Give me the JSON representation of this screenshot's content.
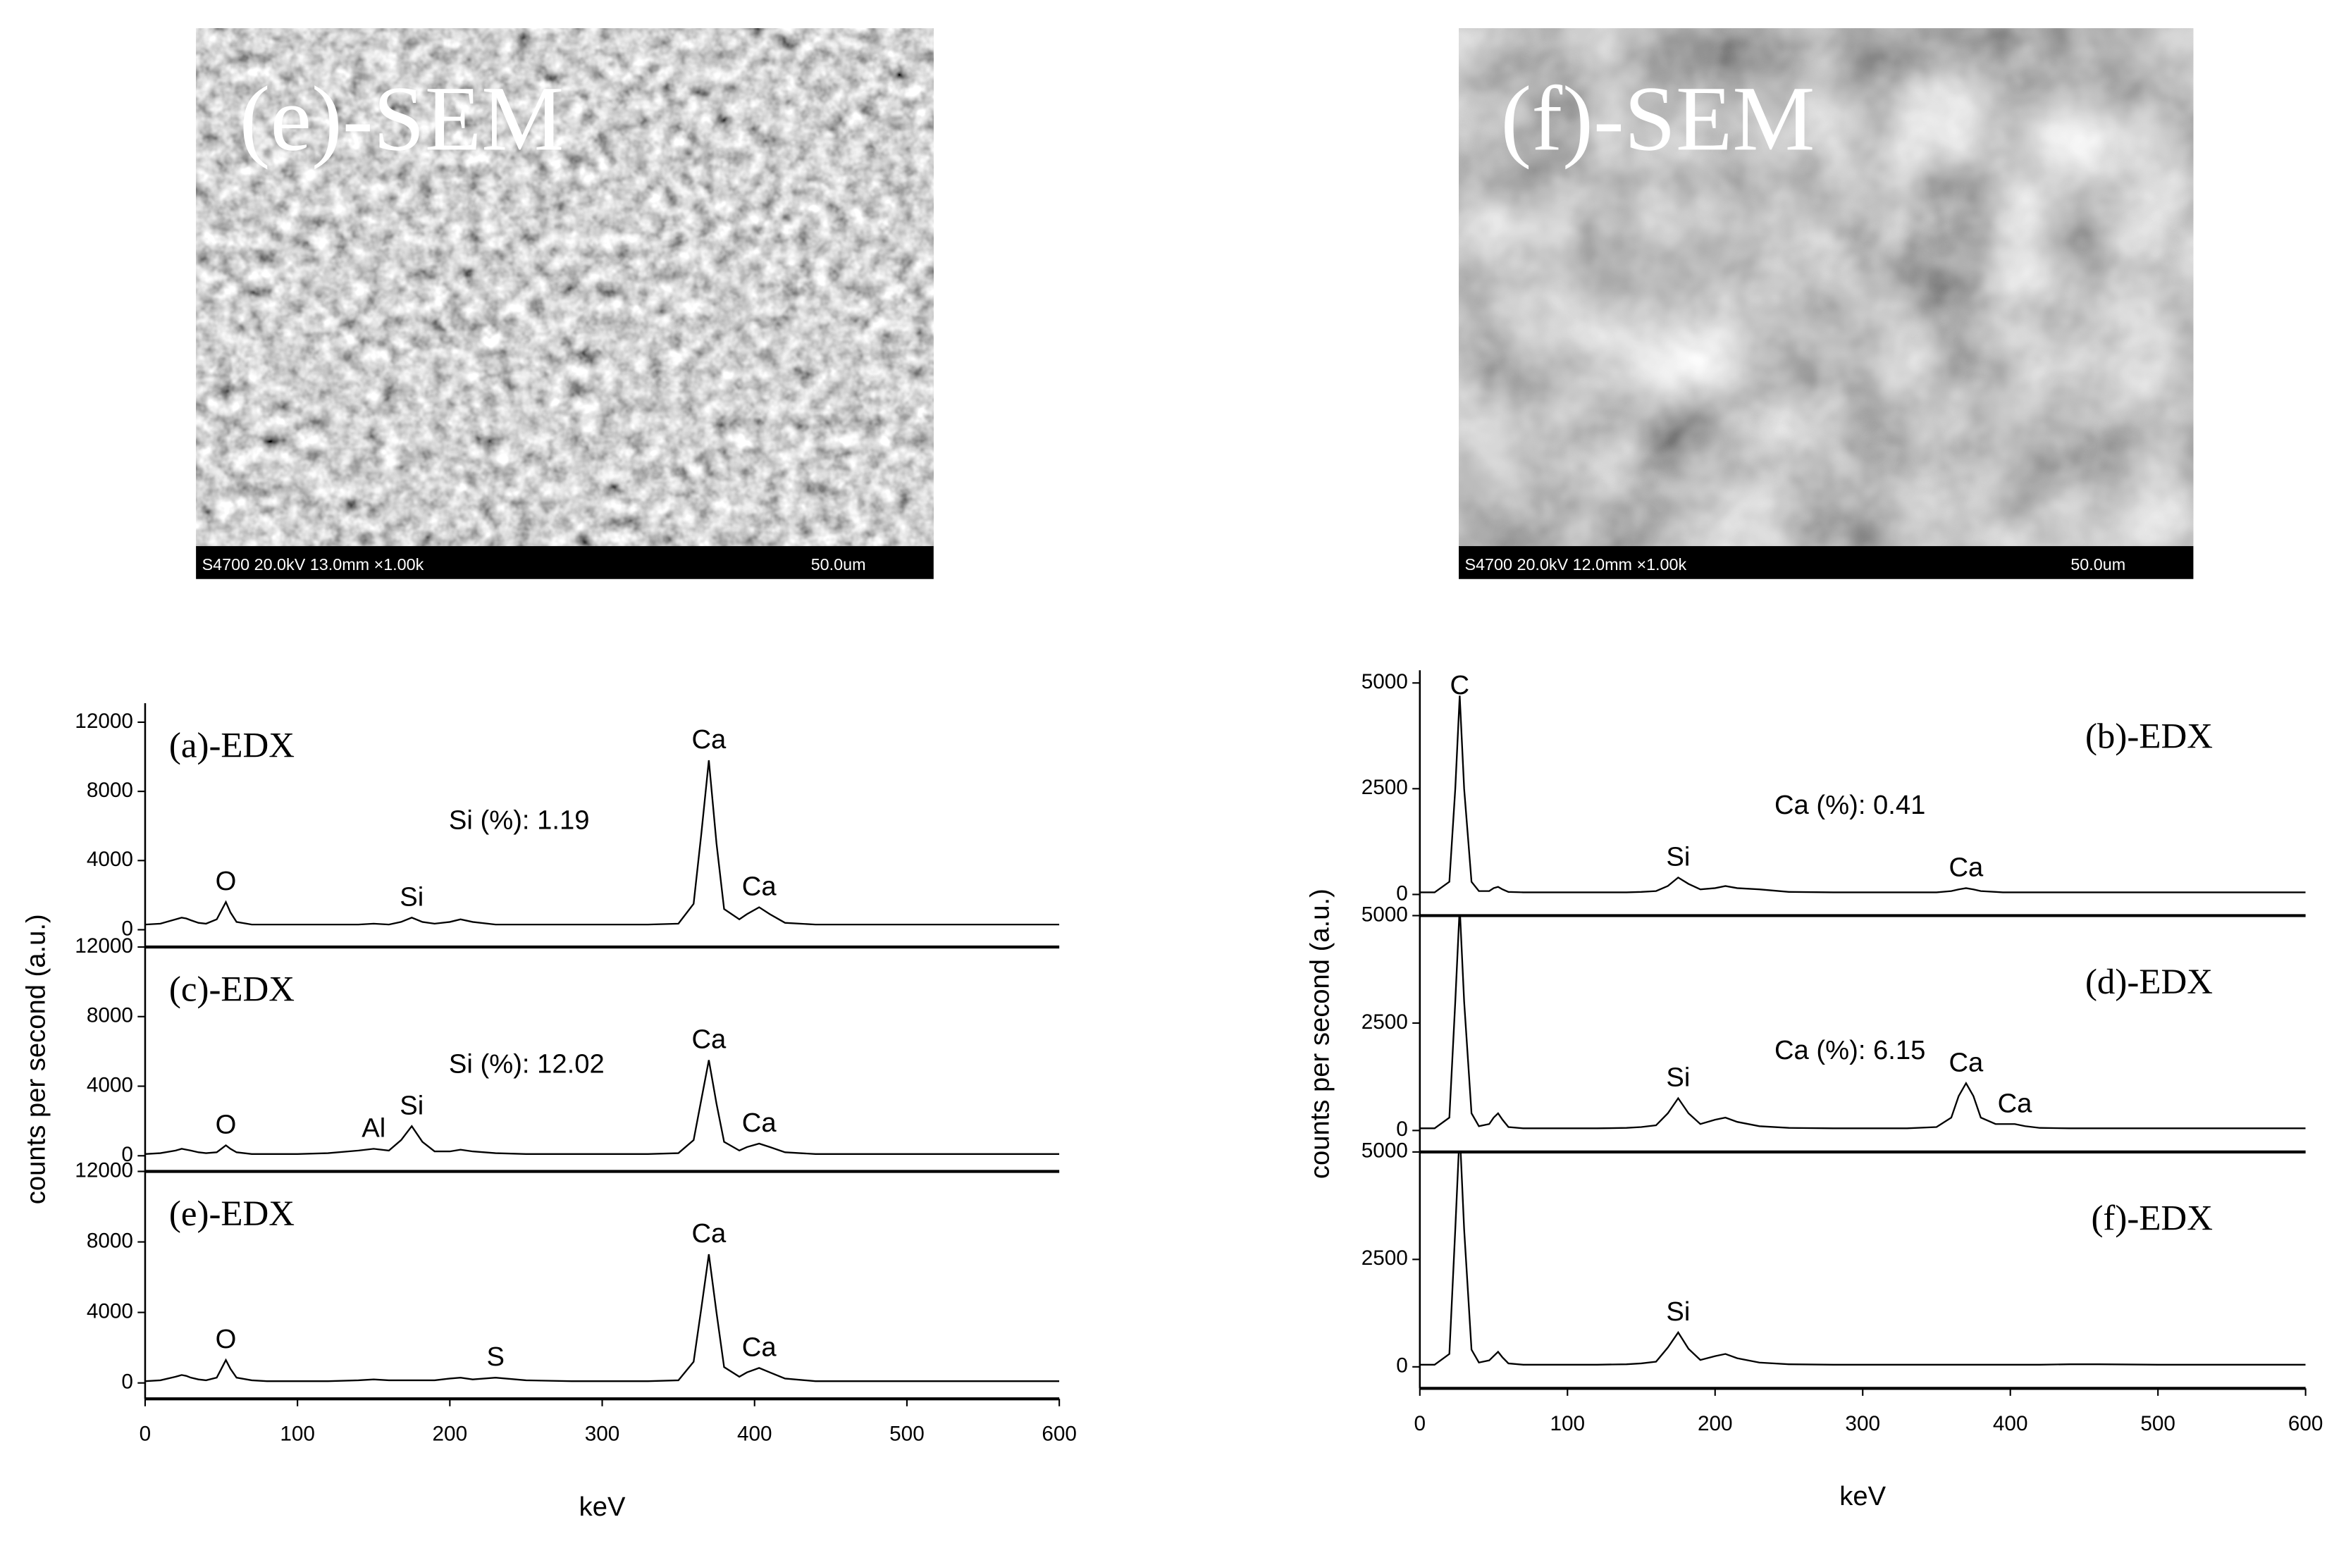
{
  "images": [
    {
      "label": "(e)-SEM",
      "info": "S4700 20.0kV 13.0mm ×1.00k",
      "scale": "50.0um"
    },
    {
      "label": "(f)-SEM",
      "info": "S4700 20.0kV 12.0mm ×1.00k",
      "scale": "50.0um"
    }
  ],
  "chart_data": [
    {
      "type": "line",
      "title": "(a)-EDX",
      "note": "Si (%): 1.19",
      "color": "#000000",
      "x": [
        0,
        10,
        20,
        24,
        27,
        30,
        35,
        40,
        47,
        50,
        53,
        56,
        60,
        70,
        80,
        100,
        120,
        140,
        150,
        160,
        168,
        175,
        182,
        190,
        200,
        207,
        215,
        230,
        250,
        280,
        300,
        330,
        350,
        360,
        365,
        370,
        375,
        380,
        390,
        395,
        403,
        410,
        420,
        440,
        460,
        500,
        550,
        600
      ],
      "values": [
        300,
        350,
        600,
        700,
        650,
        550,
        400,
        350,
        600,
        1100,
        1600,
        1000,
        450,
        300,
        300,
        300,
        300,
        300,
        350,
        300,
        450,
        700,
        450,
        350,
        450,
        600,
        450,
        300,
        300,
        300,
        300,
        300,
        350,
        1500,
        5500,
        9800,
        5000,
        1200,
        600,
        900,
        1300,
        900,
        400,
        300,
        300,
        300,
        300,
        300
      ],
      "annotations": [
        {
          "text": "O",
          "x": 53
        },
        {
          "text": "Si",
          "x": 175
        },
        {
          "text": "Ca",
          "x": 370
        },
        {
          "text": "Ca",
          "x": 403
        }
      ],
      "xlim": [
        0,
        600
      ],
      "ylim": [
        -1000,
        13100
      ],
      "yticks": [
        0,
        4000,
        8000,
        12000
      ]
    },
    {
      "type": "line",
      "title": "(c)-EDX",
      "note": "Si (%): 12.02",
      "color": "#000000",
      "ylabel": "counts per second (a.u.)",
      "x": [
        0,
        10,
        20,
        24,
        27,
        30,
        35,
        40,
        47,
        50,
        53,
        56,
        60,
        70,
        80,
        100,
        120,
        140,
        150,
        160,
        168,
        175,
        182,
        190,
        200,
        207,
        215,
        230,
        250,
        280,
        300,
        330,
        350,
        360,
        365,
        370,
        375,
        380,
        390,
        395,
        403,
        410,
        420,
        440,
        460,
        500,
        550,
        600
      ],
      "values": [
        100,
        150,
        300,
        400,
        350,
        300,
        200,
        150,
        200,
        400,
        600,
        400,
        200,
        100,
        100,
        100,
        150,
        300,
        400,
        300,
        900,
        1700,
        800,
        250,
        250,
        350,
        250,
        150,
        100,
        100,
        100,
        100,
        150,
        900,
        3200,
        5500,
        3000,
        800,
        300,
        500,
        700,
        500,
        200,
        100,
        100,
        100,
        100,
        100
      ],
      "annotations": [
        {
          "text": "O",
          "x": 53
        },
        {
          "text": "Al",
          "x": 150
        },
        {
          "text": "Si",
          "x": 175
        },
        {
          "text": "Ca",
          "x": 370
        },
        {
          "text": "Ca",
          "x": 403
        }
      ],
      "xlim": [
        0,
        600
      ],
      "ylim": [
        -900,
        12000
      ],
      "yticks": [
        0,
        4000,
        8000,
        12000
      ]
    },
    {
      "type": "line",
      "title": "(e)-EDX",
      "color": "#000000",
      "xlabel": "keV",
      "x": [
        0,
        10,
        20,
        24,
        27,
        30,
        35,
        40,
        47,
        50,
        53,
        56,
        60,
        70,
        80,
        100,
        120,
        140,
        150,
        160,
        168,
        175,
        182,
        190,
        200,
        207,
        215,
        230,
        250,
        280,
        300,
        330,
        350,
        360,
        365,
        370,
        375,
        380,
        390,
        395,
        403,
        410,
        420,
        440,
        460,
        500,
        550,
        600
      ],
      "values": [
        100,
        150,
        350,
        450,
        400,
        300,
        200,
        150,
        300,
        800,
        1300,
        800,
        300,
        150,
        100,
        100,
        100,
        150,
        200,
        150,
        150,
        150,
        150,
        150,
        250,
        300,
        200,
        300,
        150,
        100,
        100,
        100,
        150,
        1200,
        4200,
        7300,
        4000,
        900,
        350,
        600,
        850,
        600,
        250,
        100,
        100,
        100,
        100,
        100
      ],
      "annotations": [
        {
          "text": "O",
          "x": 53
        },
        {
          "text": "S",
          "x": 230
        },
        {
          "text": "Ca",
          "x": 370
        },
        {
          "text": "Ca",
          "x": 403
        }
      ],
      "xlim": [
        0,
        600
      ],
      "ylim": [
        -900,
        12000
      ],
      "yticks": [
        0,
        4000,
        8000,
        12000
      ],
      "xticks": [
        0,
        100,
        200,
        300,
        400,
        500,
        600
      ]
    },
    {
      "type": "line",
      "title": "(b)-EDX",
      "note": "Ca (%): 0.41",
      "color": "#000000",
      "x": [
        0,
        10,
        20,
        24,
        27,
        30,
        35,
        40,
        47,
        50,
        53,
        56,
        60,
        70,
        80,
        100,
        120,
        140,
        150,
        160,
        168,
        175,
        182,
        190,
        200,
        207,
        215,
        230,
        250,
        280,
        300,
        330,
        350,
        360,
        365,
        370,
        375,
        380,
        390,
        395,
        403,
        410,
        420,
        440,
        460,
        500,
        550,
        600
      ],
      "values": [
        50,
        50,
        300,
        2500,
        4700,
        2500,
        300,
        80,
        80,
        150,
        180,
        120,
        60,
        50,
        50,
        50,
        50,
        50,
        60,
        80,
        200,
        400,
        250,
        120,
        150,
        200,
        150,
        120,
        60,
        50,
        50,
        50,
        50,
        80,
        120,
        150,
        120,
        80,
        60,
        50,
        50,
        50,
        50,
        50,
        50,
        50,
        50,
        50
      ],
      "annotations": [
        {
          "text": "C",
          "x": 27
        },
        {
          "text": "Si",
          "x": 175
        },
        {
          "text": "Ca",
          "x": 370
        }
      ],
      "xlim": [
        0,
        600
      ],
      "ylim": [
        -500,
        5300
      ],
      "yticks": [
        0,
        2500,
        5000
      ]
    },
    {
      "type": "line",
      "title": "(d)-EDX",
      "note": "Ca (%): 6.15",
      "color": "#000000",
      "ylabel": "counts per second (a.u.)",
      "x": [
        0,
        10,
        20,
        24,
        27,
        30,
        35,
        40,
        47,
        50,
        53,
        56,
        60,
        70,
        80,
        100,
        120,
        140,
        150,
        160,
        168,
        175,
        182,
        190,
        200,
        207,
        215,
        230,
        250,
        280,
        300,
        330,
        350,
        360,
        365,
        370,
        375,
        380,
        390,
        395,
        403,
        410,
        420,
        440,
        460,
        500,
        550,
        600
      ],
      "values": [
        50,
        50,
        300,
        3000,
        5200,
        3000,
        400,
        100,
        150,
        300,
        400,
        250,
        80,
        50,
        50,
        50,
        50,
        60,
        80,
        120,
        400,
        750,
        400,
        150,
        250,
        300,
        200,
        100,
        60,
        50,
        50,
        50,
        80,
        300,
        800,
        1100,
        800,
        300,
        150,
        150,
        150,
        100,
        60,
        50,
        50,
        50,
        50,
        50
      ],
      "annotations": [
        {
          "text": "Si",
          "x": 175
        },
        {
          "text": "Ca",
          "x": 370
        },
        {
          "text": "Ca",
          "x": 403
        }
      ],
      "xlim": [
        0,
        600
      ],
      "ylim": [
        -500,
        5000
      ],
      "yticks": [
        0,
        2500,
        5000
      ]
    },
    {
      "type": "line",
      "title": "(f)-EDX",
      "color": "#000000",
      "xlabel": "keV",
      "x": [
        0,
        10,
        20,
        24,
        27,
        30,
        35,
        40,
        47,
        50,
        53,
        56,
        60,
        70,
        80,
        100,
        120,
        140,
        150,
        160,
        168,
        175,
        182,
        190,
        200,
        207,
        215,
        230,
        250,
        280,
        300,
        330,
        350,
        360,
        365,
        370,
        375,
        380,
        390,
        395,
        403,
        410,
        420,
        440,
        460,
        500,
        550,
        600
      ],
      "values": [
        50,
        50,
        300,
        3200,
        5500,
        3200,
        400,
        100,
        150,
        250,
        350,
        220,
        80,
        50,
        50,
        50,
        50,
        60,
        80,
        120,
        450,
        800,
        420,
        160,
        250,
        300,
        200,
        100,
        60,
        50,
        50,
        50,
        50,
        50,
        50,
        50,
        50,
        50,
        50,
        50,
        50,
        50,
        50,
        60,
        60,
        50,
        50,
        50
      ],
      "annotations": [
        {
          "text": "Si",
          "x": 175
        }
      ],
      "xlim": [
        0,
        600
      ],
      "ylim": [
        -500,
        5000
      ],
      "yticks": [
        0,
        2500,
        5000
      ],
      "xticks": [
        0,
        100,
        200,
        300,
        400,
        500,
        600
      ]
    }
  ]
}
